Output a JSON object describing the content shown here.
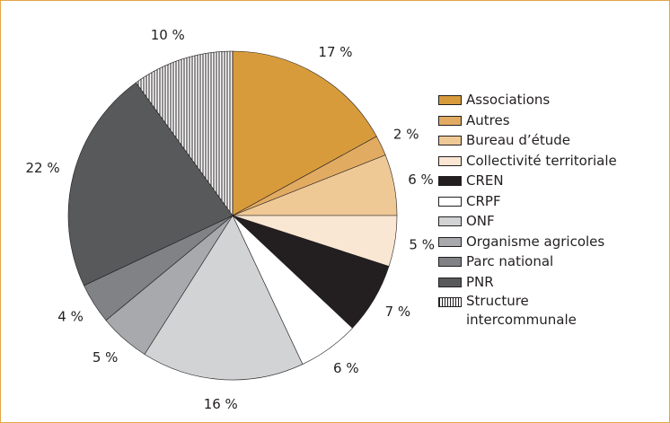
{
  "chart_data": {
    "type": "pie",
    "categories": [
      "Associations",
      "Autres",
      "Bureau d’étude",
      "Collectivité territoriale",
      "CREN",
      "CRPF",
      "ONF",
      "Organisme agricoles",
      "Parc national",
      "PNR",
      "Structure intercommunale"
    ],
    "values": [
      17,
      2,
      6,
      5,
      7,
      6,
      16,
      5,
      4,
      22,
      10
    ],
    "value_labels": [
      "17 %",
      "2 %",
      "6 %",
      "5 %",
      "7 %",
      "6 %",
      "16 %",
      "5 %",
      "4 %",
      "22 %",
      "10 %"
    ],
    "colors": [
      "#d89b3c",
      "#e2ab62",
      "#efc995",
      "#f9e7d3",
      "#231f20",
      "#ffffff",
      "#d2d3d5",
      "#a7a9ac",
      "#808285",
      "#58595b",
      "#ffffff"
    ],
    "patterns": {
      "10": "vertical-lines"
    }
  }
}
